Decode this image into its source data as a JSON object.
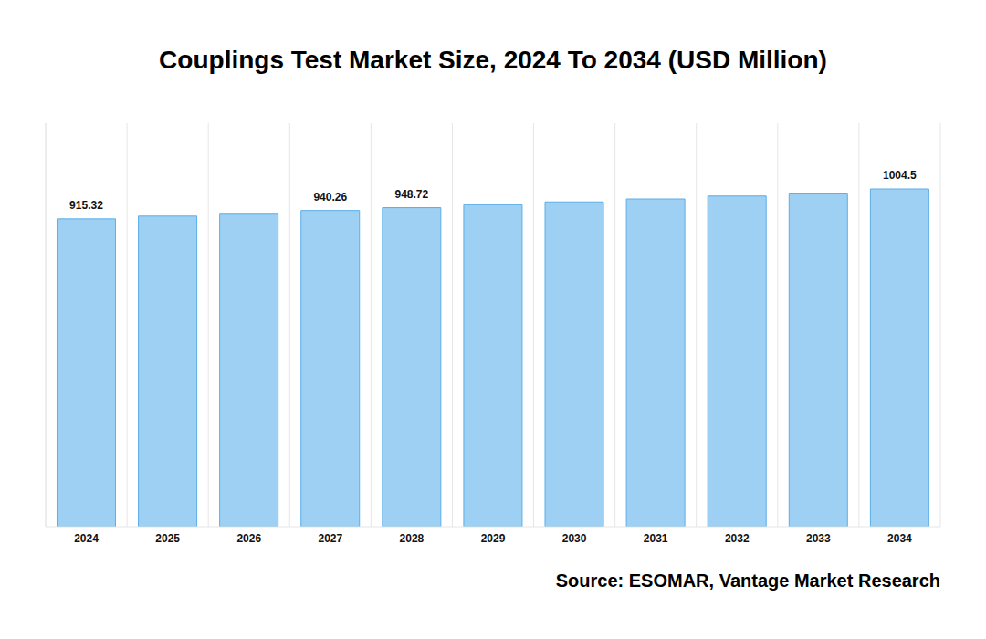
{
  "chart_data": {
    "type": "bar",
    "title": "Couplings Test Market Size, 2024 To 2034 (USD Million)",
    "source": "Source: ESOMAR, Vantage Market Research",
    "categories": [
      "2024",
      "2025",
      "2026",
      "2027",
      "2028",
      "2029",
      "2030",
      "2031",
      "2032",
      "2033",
      "2034"
    ],
    "values": [
      915.32,
      923.6,
      931.9,
      940.26,
      948.72,
      957.3,
      965.9,
      974.6,
      983.4,
      992.2,
      1004.5
    ],
    "value_labels": [
      "915.32",
      null,
      null,
      "940.26",
      "948.72",
      null,
      null,
      null,
      null,
      null,
      "1004.5"
    ],
    "data_labels": true,
    "color": "#9dd0f3",
    "ylim": [
      0,
      1200
    ],
    "tick_labels": "x",
    "grid": true
  }
}
